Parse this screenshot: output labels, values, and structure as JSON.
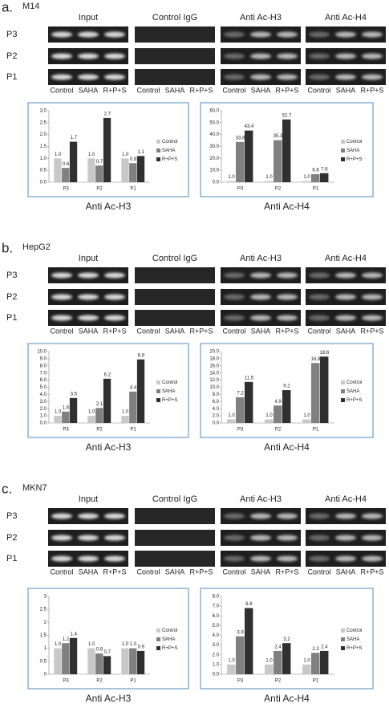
{
  "panels": [
    {
      "label": "a.",
      "cell_line": "M14"
    },
    {
      "label": "b.",
      "cell_line": "HepG2"
    },
    {
      "label": "c.",
      "cell_line": "MKN7"
    }
  ],
  "gel": {
    "columns": [
      "Input",
      "Control IgG",
      "Anti Ac-H3",
      "Anti Ac-H4"
    ],
    "rows": [
      "P3",
      "P2",
      "P1"
    ],
    "lanes": [
      "Control",
      "SAHA",
      "R+P+S"
    ]
  },
  "chart_data": [
    {
      "type": "bar",
      "title": "Anti Ac-H3",
      "categories": [
        "P3",
        "P2",
        "P1"
      ],
      "ylim": [
        0,
        3
      ],
      "yticks": [
        {
          "value": 0,
          "label": "0.0"
        },
        0.5,
        {
          "value": 1,
          "label": "1.0"
        },
        1.5,
        {
          "value": 2,
          "label": "2.0"
        },
        2.5,
        {
          "value": 3,
          "label": "3.0"
        }
      ],
      "series": [
        {
          "name": "Control",
          "color": "#c8c8c8",
          "values": [
            1.0,
            1.0,
            1.0
          ],
          "value_labels": [
            "1.0",
            "1.0",
            "1.0"
          ]
        },
        {
          "name": "SAHA",
          "color": "#808080",
          "values": [
            0.6,
            0.7,
            0.8
          ],
          "value_labels": [
            "0.6",
            "0.7",
            "0.8"
          ]
        },
        {
          "name": "R+P+S",
          "color": "#303030",
          "values": [
            1.7,
            2.7,
            1.1
          ],
          "value_labels": [
            "1.7",
            "2.7",
            "1.1"
          ]
        }
      ]
    },
    {
      "type": "bar",
      "title": "Anti Ac-H4",
      "categories": [
        "P3",
        "P2",
        "P1"
      ],
      "ylim": [
        0,
        60
      ],
      "yticks": [
        {
          "value": 0,
          "label": "0.0"
        },
        {
          "value": 10,
          "label": "10.0"
        },
        {
          "value": 20,
          "label": "20.0"
        },
        {
          "value": 30,
          "label": "30.0"
        },
        {
          "value": 40,
          "label": "40.0"
        },
        {
          "value": 50,
          "label": "50.0"
        },
        {
          "value": 60,
          "label": "60.0"
        }
      ],
      "series": [
        {
          "name": "Control",
          "color": "#c8c8c8",
          "values": [
            1.0,
            1.0,
            1.0
          ],
          "value_labels": [
            "1.0",
            "1.0",
            "1.0"
          ]
        },
        {
          "name": "SAHA",
          "color": "#808080",
          "values": [
            33.8,
            35.3,
            6.8
          ],
          "value_labels": [
            "33.8",
            "35.3",
            "6.8"
          ]
        },
        {
          "name": "R+P+S",
          "color": "#303030",
          "values": [
            43.4,
            52.7,
            7.6
          ],
          "value_labels": [
            "43.4",
            "52.7",
            "7.6"
          ]
        }
      ]
    },
    {
      "type": "bar",
      "title": "Anti Ac-H3",
      "categories": [
        "P3",
        "P2",
        "P1"
      ],
      "ylim": [
        0,
        10
      ],
      "yticks": [
        {
          "value": 0,
          "label": "0.0"
        },
        {
          "value": 1,
          "label": "1.0"
        },
        {
          "value": 2,
          "label": "2.0"
        },
        {
          "value": 3,
          "label": "3.0"
        },
        {
          "value": 4,
          "label": "4.0"
        },
        {
          "value": 5,
          "label": "5.0"
        },
        {
          "value": 6,
          "label": "6.0"
        },
        {
          "value": 7,
          "label": "7.0"
        },
        {
          "value": 8,
          "label": "8.0"
        },
        {
          "value": 9,
          "label": "9.0"
        },
        {
          "value": 10,
          "label": "10.0"
        }
      ],
      "series": [
        {
          "name": "Control",
          "color": "#c8c8c8",
          "values": [
            1.0,
            1.0,
            1.0
          ],
          "value_labels": [
            "1.0",
            "1.0",
            "1.0"
          ]
        },
        {
          "name": "SAHA",
          "color": "#808080",
          "values": [
            1.6,
            2.1,
            4.4
          ],
          "value_labels": [
            "1.6",
            "2.1",
            "4.4"
          ]
        },
        {
          "name": "R+P+S",
          "color": "#303030",
          "values": [
            3.5,
            6.2,
            8.9
          ],
          "value_labels": [
            "3.5",
            "6.2",
            "8.9"
          ]
        }
      ]
    },
    {
      "type": "bar",
      "title": "Anti Ac-H4",
      "categories": [
        "P3",
        "P2",
        "P1"
      ],
      "ylim": [
        0,
        20
      ],
      "yticks": [
        {
          "value": 0,
          "label": "0.0"
        },
        {
          "value": 2,
          "label": "2.0"
        },
        {
          "value": 4,
          "label": "4.0"
        },
        {
          "value": 6,
          "label": "6.0"
        },
        {
          "value": 8,
          "label": "8.0"
        },
        {
          "value": 10,
          "label": "10.0"
        },
        {
          "value": 12,
          "label": "12.0"
        },
        {
          "value": 14,
          "label": "14.0"
        },
        {
          "value": 16,
          "label": "16.0"
        },
        {
          "value": 18,
          "label": "18.0"
        },
        {
          "value": 20,
          "label": "20.0"
        }
      ],
      "series": [
        {
          "name": "Control",
          "color": "#c8c8c8",
          "values": [
            1.0,
            1.0,
            1.0
          ],
          "value_labels": [
            "1.0",
            "1.0",
            "1.0"
          ]
        },
        {
          "name": "SAHA",
          "color": "#808080",
          "values": [
            7.2,
            4.9,
            16.8
          ],
          "value_labels": [
            "7.2",
            "4.9",
            "16.8"
          ]
        },
        {
          "name": "R+P+S",
          "color": "#303030",
          "values": [
            11.5,
            9.2,
            18.6
          ],
          "value_labels": [
            "11.5",
            "9.2",
            "18.6"
          ]
        }
      ]
    },
    {
      "type": "bar",
      "title": "Anti Ac-H3",
      "categories": [
        "P3",
        "P2",
        "P1"
      ],
      "ylim": [
        0,
        3
      ],
      "yticks": [
        0,
        0.5,
        1,
        1.5,
        2,
        2.5,
        3
      ],
      "series": [
        {
          "name": "Control",
          "color": "#c8c8c8",
          "values": [
            1.0,
            1.0,
            1.0
          ],
          "value_labels": [
            "1.0",
            "1.0",
            "1.0"
          ]
        },
        {
          "name": "SAHA",
          "color": "#808080",
          "values": [
            1.2,
            0.8,
            1.0
          ],
          "value_labels": [
            "1.2",
            "0.8",
            "1.0"
          ]
        },
        {
          "name": "R+P+S",
          "color": "#303030",
          "values": [
            1.4,
            0.7,
            0.9
          ],
          "value_labels": [
            "1.4",
            "0.7",
            "0.9"
          ]
        }
      ]
    },
    {
      "type": "bar",
      "title": "Anti Ac-H4",
      "categories": [
        "P3",
        "P2",
        "P1"
      ],
      "ylim": [
        0,
        8
      ],
      "yticks": [
        {
          "value": 0,
          "label": "0.0"
        },
        {
          "value": 1,
          "label": "1.0"
        },
        {
          "value": 2,
          "label": "2.0"
        },
        {
          "value": 3,
          "label": "3.0"
        },
        {
          "value": 4,
          "label": "4.0"
        },
        {
          "value": 5,
          "label": "5.0"
        },
        {
          "value": 6,
          "label": "6.0"
        },
        {
          "value": 7,
          "label": "7.0"
        },
        {
          "value": 8,
          "label": "8.0"
        }
      ],
      "series": [
        {
          "name": "Control",
          "color": "#c8c8c8",
          "values": [
            1.0,
            1.0,
            1.0
          ],
          "value_labels": [
            "1.0",
            "1.0",
            "1.0"
          ]
        },
        {
          "name": "SAHA",
          "color": "#808080",
          "values": [
            3.9,
            2.4,
            2.2
          ],
          "value_labels": [
            "3.9",
            "2.4",
            "2.2"
          ]
        },
        {
          "name": "R+P+S",
          "color": "#303030",
          "values": [
            6.8,
            3.2,
            2.4
          ],
          "value_labels": [
            "6.8",
            "3.2",
            "2.4"
          ]
        }
      ]
    }
  ]
}
